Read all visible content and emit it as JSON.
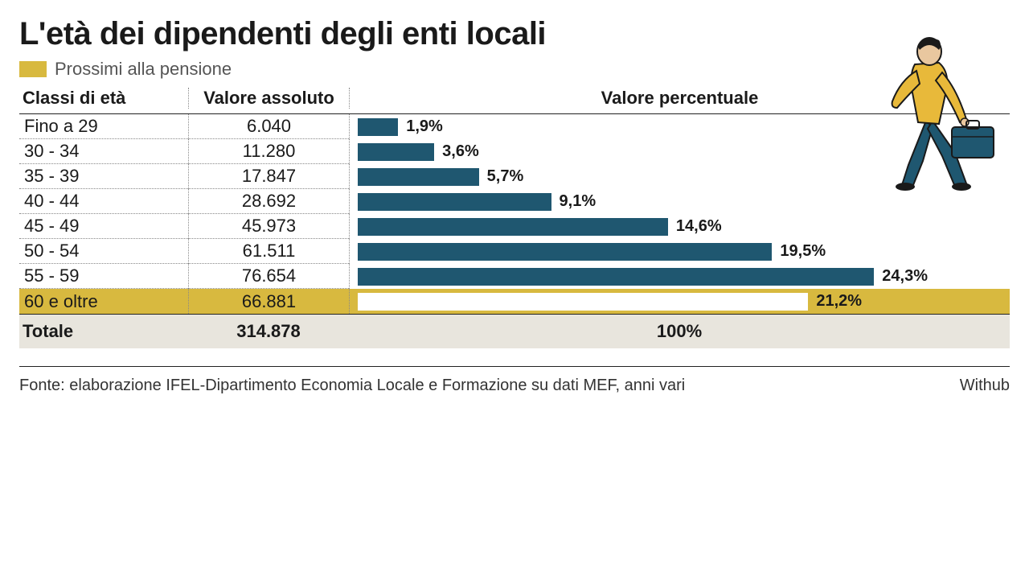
{
  "title": "L'età dei dipendenti degli enti locali",
  "legend": {
    "swatch_color": "#d8b93f",
    "label": "Prossimi alla pensione"
  },
  "columns": {
    "age": "Classi di età",
    "abs": "Valore assoluto",
    "pct": "Valore percentuale"
  },
  "chart": {
    "type": "bar",
    "bar_color": "#1f5770",
    "highlight_bar_color": "#ffffff",
    "highlight_row_bg": "#d8b93f",
    "total_row_bg": "#e8e5dd",
    "max_pct": 27,
    "bar_area_ratio": 0.88,
    "label_fontsize": 20,
    "row_fontsize": 22
  },
  "rows": [
    {
      "age": "Fino a 29",
      "abs": "6.040",
      "pct": 1.9,
      "pct_label": "1,9%",
      "highlight": false
    },
    {
      "age": "30 - 34",
      "abs": "11.280",
      "pct": 3.6,
      "pct_label": "3,6%",
      "highlight": false
    },
    {
      "age": "35 - 39",
      "abs": "17.847",
      "pct": 5.7,
      "pct_label": "5,7%",
      "highlight": false
    },
    {
      "age": "40 - 44",
      "abs": "28.692",
      "pct": 9.1,
      "pct_label": "9,1%",
      "highlight": false
    },
    {
      "age": "45 - 49",
      "abs": "45.973",
      "pct": 14.6,
      "pct_label": "14,6%",
      "highlight": false
    },
    {
      "age": "50 - 54",
      "abs": "61.511",
      "pct": 19.5,
      "pct_label": "19,5%",
      "highlight": false
    },
    {
      "age": "55 - 59",
      "abs": "76.654",
      "pct": 24.3,
      "pct_label": "24,3%",
      "highlight": false
    },
    {
      "age": "60 e oltre",
      "abs": "66.881",
      "pct": 21.2,
      "pct_label": "21,2%",
      "highlight": true
    }
  ],
  "total": {
    "label": "Totale",
    "abs": "314.878",
    "pct_label": "100%"
  },
  "footer": {
    "source": "Fonte: elaborazione IFEL-Dipartimento Economia Locale e Formazione su dati MEF, anni vari",
    "credit": "Withub"
  },
  "illustration": {
    "shirt_color": "#e8b93a",
    "pants_color": "#1f5770",
    "skin_color": "#e9c79f",
    "hair_color": "#1a1a1a",
    "case_color": "#1f5770",
    "outline": "#1a1a1a"
  }
}
